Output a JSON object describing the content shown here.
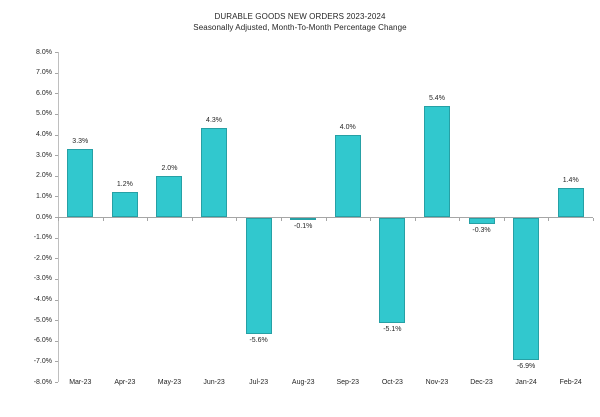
{
  "title": "DURABLE GOODS NEW ORDERS 2023-2024",
  "subtitle": "Seasonally Adjusted,  Month-To-Month Percentage Change",
  "chart_data": {
    "type": "bar",
    "categories": [
      "Mar-23",
      "Apr-23",
      "May-23",
      "Jun-23",
      "Jul-23",
      "Aug-23",
      "Sep-23",
      "Oct-23",
      "Nov-23",
      "Dec-23",
      "Jan-24",
      "Feb-24"
    ],
    "values": [
      3.3,
      1.2,
      2.0,
      4.3,
      -5.6,
      -0.1,
      4.0,
      -5.1,
      5.4,
      -0.3,
      -6.9,
      1.4
    ],
    "value_labels": [
      "3.3%",
      "1.2%",
      "2.0%",
      "4.3%",
      "-5.6%",
      "-0.1%",
      "4.0%",
      "-5.1%",
      "5.4%",
      "-0.3%",
      "-6.9%",
      "1.4%"
    ],
    "title": "DURABLE GOODS NEW ORDERS 2023-2024",
    "xlabel": "",
    "ylabel": "",
    "ylim": [
      -8.0,
      8.0
    ],
    "ytick_step": 1.0,
    "ytick_labels": [
      "8.0%",
      "7.0%",
      "6.0%",
      "5.0%",
      "4.0%",
      "3.0%",
      "2.0%",
      "1.0%",
      "0.0%",
      "-1.0%",
      "-2.0%",
      "-3.0%",
      "-4.0%",
      "-5.0%",
      "-6.0%",
      "-7.0%",
      "-8.0%"
    ],
    "grid": false,
    "legend": "none",
    "bar_color": "#31C8CE",
    "bar_border_color": "#26A0A5",
    "axis_line_color": "#A6A6A6",
    "text_color": "#262626"
  }
}
